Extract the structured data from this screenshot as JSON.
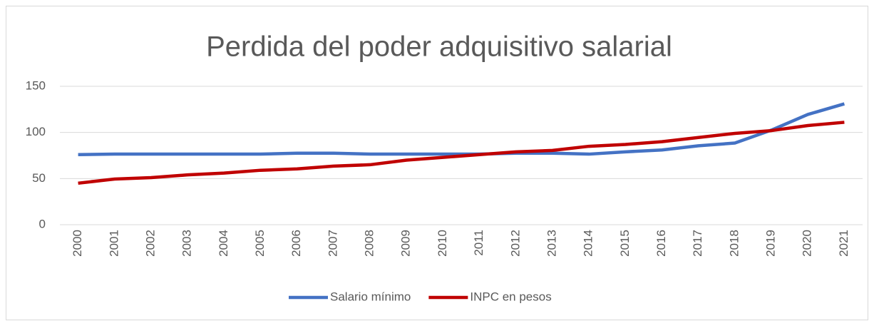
{
  "chart_data": {
    "type": "line",
    "title": "Perdida del poder adquisitivo salarial",
    "categories": [
      "2000",
      "2001",
      "2002",
      "2003",
      "2004",
      "2005",
      "2006",
      "2007",
      "2008",
      "2009",
      "2010",
      "2011",
      "2012",
      "2013",
      "2014",
      "2015",
      "2016",
      "2017",
      "2018",
      "2019",
      "2020",
      "2021"
    ],
    "series": [
      {
        "name": "Salario mínimo",
        "color": "#4472c4",
        "values": [
          76,
          76.5,
          76.5,
          76.5,
          76.5,
          76.5,
          77.5,
          77.5,
          76.5,
          76.5,
          76.5,
          76.5,
          77.5,
          77.5,
          76.5,
          79,
          81,
          85.5,
          88.5,
          102.5,
          119.5,
          131
        ]
      },
      {
        "name": "INPC en pesos",
        "color": "#c00000",
        "values": [
          45,
          49.5,
          51,
          54,
          56,
          59,
          60.5,
          63.5,
          65,
          70,
          73,
          76,
          79,
          80.5,
          85,
          87,
          90,
          94.5,
          99,
          102,
          107.5,
          111
        ]
      }
    ],
    "ylim": [
      0,
      150
    ],
    "yticks": [
      0,
      50,
      100,
      150
    ],
    "grid": true,
    "legend": "bottom"
  }
}
